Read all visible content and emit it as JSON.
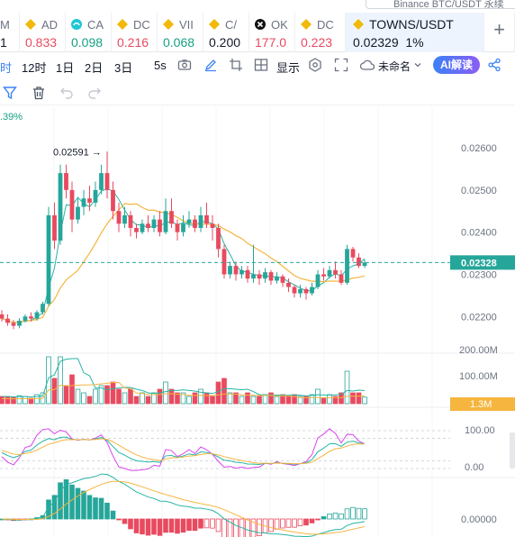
{
  "search": {
    "placeholder": "Binance BTC/USDT 永续"
  },
  "tabs": [
    {
      "sym": "M",
      "val": "1",
      "color": "#111827",
      "icon": "none"
    },
    {
      "sym": "AD",
      "val": "0.833",
      "color": "#e84a5f",
      "icon": "diamond-icon"
    },
    {
      "sym": "CA",
      "val": "0.098",
      "color": "#16a085",
      "icon": "cake-icon"
    },
    {
      "sym": "DC",
      "val": "0.216",
      "color": "#e84a5f",
      "icon": "diamond-icon"
    },
    {
      "sym": "VII",
      "val": "0.068",
      "color": "#16a085",
      "icon": "diamond-icon"
    },
    {
      "sym": "C/",
      "val": "0.200",
      "color": "#111827",
      "icon": "diamond-icon"
    },
    {
      "sym": "OK",
      "val": "177.0",
      "color": "#e84a5f",
      "icon": "okx-icon"
    },
    {
      "sym": "DC",
      "val": "0.223",
      "color": "#e84a5f",
      "icon": "diamond-icon"
    }
  ],
  "active_tab": {
    "sym": "TOWNS/USDT",
    "price": "0.02329",
    "change": "1%"
  },
  "toolbar": {
    "t_partial": "时",
    "t_12h": "12时",
    "t_1d": "1日",
    "t_2d": "2日",
    "t_3d": "3日",
    "t_5s": "5s",
    "display": "显示",
    "unnamed": "未命名",
    "ai": "AI解读"
  },
  "pct_label": ".39%",
  "chart_data": {
    "type": "candlestick",
    "price_ticks": [
      "0.02600",
      "0.02500",
      "0.02400",
      "0.02300",
      "0.02200"
    ],
    "current_price": "0.02328",
    "high_annotation": "0.02591",
    "volume_ticks": [
      "200.00M",
      "100.00M"
    ],
    "current_volume": "1.3M",
    "kdj_ticks": [
      "100.00",
      "0.00"
    ],
    "macd_ticks": [
      "0.00000"
    ],
    "candles": [
      [
        0.02205,
        0.02195,
        0.02215,
        0.02188
      ],
      [
        0.02195,
        0.02185,
        0.02205,
        0.02178
      ],
      [
        0.02185,
        0.02178,
        0.02192,
        0.0217
      ],
      [
        0.02178,
        0.0219,
        0.02196,
        0.02172
      ],
      [
        0.0219,
        0.022,
        0.02205,
        0.02186
      ],
      [
        0.022,
        0.02195,
        0.0221,
        0.02188
      ],
      [
        0.02195,
        0.0221,
        0.02215,
        0.0219
      ],
      [
        0.0221,
        0.0223,
        0.02235,
        0.02205
      ],
      [
        0.0223,
        0.0244,
        0.0246,
        0.02225
      ],
      [
        0.0244,
        0.0238,
        0.0247,
        0.0236
      ],
      [
        0.0238,
        0.0254,
        0.0256,
        0.0237
      ],
      [
        0.0254,
        0.025,
        0.0256,
        0.0248
      ],
      [
        0.025,
        0.0243,
        0.0252,
        0.024
      ],
      [
        0.0243,
        0.0246,
        0.0248,
        0.0242
      ],
      [
        0.0246,
        0.0248,
        0.025,
        0.0244
      ],
      [
        0.0248,
        0.0247,
        0.0251,
        0.0245
      ],
      [
        0.0247,
        0.025,
        0.0252,
        0.0246
      ],
      [
        0.025,
        0.0254,
        0.0256,
        0.0249
      ],
      [
        0.0254,
        0.025,
        0.02591,
        0.0248
      ],
      [
        0.025,
        0.0245,
        0.0252,
        0.0243
      ],
      [
        0.0245,
        0.0242,
        0.0247,
        0.024
      ],
      [
        0.0242,
        0.0244,
        0.0246,
        0.0241
      ],
      [
        0.0244,
        0.0241,
        0.0245,
        0.0239
      ],
      [
        0.0241,
        0.024,
        0.0242,
        0.02385
      ],
      [
        0.024,
        0.0242,
        0.0243,
        0.02395
      ],
      [
        0.0242,
        0.0241,
        0.0244,
        0.024
      ],
      [
        0.0241,
        0.0243,
        0.0244,
        0.024
      ],
      [
        0.0243,
        0.024,
        0.0245,
        0.0239
      ],
      [
        0.024,
        0.0245,
        0.0248,
        0.02395
      ],
      [
        0.0245,
        0.0242,
        0.0248,
        0.0241
      ],
      [
        0.0242,
        0.024,
        0.0243,
        0.0238
      ],
      [
        0.024,
        0.0242,
        0.0244,
        0.0239
      ],
      [
        0.0242,
        0.0243,
        0.0245,
        0.0241
      ],
      [
        0.0243,
        0.0241,
        0.0244,
        0.024
      ],
      [
        0.0241,
        0.0244,
        0.0246,
        0.024
      ],
      [
        0.0244,
        0.0242,
        0.0247,
        0.0241
      ],
      [
        0.0242,
        0.0241,
        0.0244,
        0.0238
      ],
      [
        0.0241,
        0.0236,
        0.0242,
        0.0234
      ],
      [
        0.0236,
        0.023,
        0.0237,
        0.0229
      ],
      [
        0.023,
        0.0232,
        0.0233,
        0.0229
      ],
      [
        0.0232,
        0.023,
        0.0233,
        0.02285
      ],
      [
        0.023,
        0.0231,
        0.0232,
        0.0229
      ],
      [
        0.0231,
        0.0229,
        0.0232,
        0.0228
      ],
      [
        0.0229,
        0.023,
        0.0237,
        0.0228
      ],
      [
        0.023,
        0.0229,
        0.0231,
        0.02275
      ],
      [
        0.0229,
        0.02305,
        0.02315,
        0.0228
      ],
      [
        0.02305,
        0.02285,
        0.0231,
        0.02275
      ],
      [
        0.02285,
        0.02295,
        0.02305,
        0.02278
      ],
      [
        0.02295,
        0.0228,
        0.023,
        0.0227
      ],
      [
        0.0228,
        0.0227,
        0.0229,
        0.02258
      ],
      [
        0.0227,
        0.02255,
        0.02275,
        0.02245
      ],
      [
        0.02255,
        0.02265,
        0.02275,
        0.02245
      ],
      [
        0.02265,
        0.02255,
        0.0227,
        0.0224
      ],
      [
        0.02255,
        0.0227,
        0.0228,
        0.0225
      ],
      [
        0.0227,
        0.023,
        0.0231,
        0.02265
      ],
      [
        0.023,
        0.02295,
        0.02315,
        0.02285
      ],
      [
        0.02295,
        0.0231,
        0.0232,
        0.0229
      ],
      [
        0.0231,
        0.023,
        0.0233,
        0.0229
      ],
      [
        0.023,
        0.0228,
        0.0231,
        0.02275
      ],
      [
        0.0228,
        0.0236,
        0.0237,
        0.02275
      ],
      [
        0.0236,
        0.0234,
        0.02365,
        0.0233
      ],
      [
        0.0234,
        0.0232,
        0.0235,
        0.02315
      ],
      [
        0.0232,
        0.02328,
        0.02335,
        0.02315
      ]
    ]
  },
  "colors": {
    "up": "#26a69a",
    "down": "#e84a5f",
    "ma1": "#26b5a5",
    "ma2": "#f5b53f",
    "k": "#d946ef",
    "accent": "#3b82f6"
  }
}
